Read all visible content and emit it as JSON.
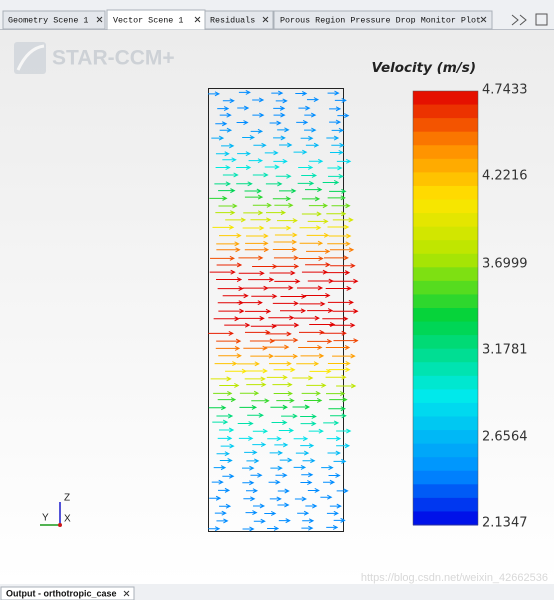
{
  "tabs": [
    {
      "label": "Geometry Scene 1"
    },
    {
      "label": "Vector Scene 1"
    },
    {
      "label": "Residuals"
    },
    {
      "label": "Porous Region Pressure Drop Monitor Plot"
    }
  ],
  "logo": "STAR-CCM+",
  "colorbar": {
    "title": "Velocity (m/s)",
    "labels": [
      "4.7433",
      "4.2216",
      "3.6999",
      "3.1781",
      "2.6564",
      "2.1347"
    ]
  },
  "triad": {
    "z": "Z",
    "y": "Y",
    "x": "X"
  },
  "output_tab": "Output - orthotropic_case",
  "watermark": "https://blog.csdn.net/weixin_42662536"
}
